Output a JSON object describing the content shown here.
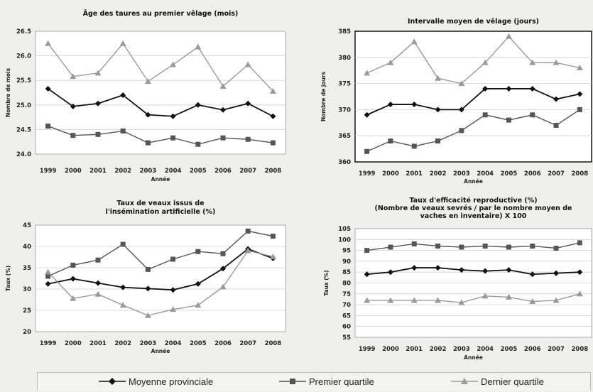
{
  "colors": {
    "moyenne": "#111111",
    "premier": "#555555",
    "dernier": "#9a9a9a"
  },
  "legend": {
    "items": [
      {
        "label": "Moyenne provinciale",
        "marker": "diamond",
        "color": "#111111"
      },
      {
        "label": "Premier quartile",
        "marker": "square",
        "color": "#555555"
      },
      {
        "label": "Dernier quartile",
        "marker": "triangle",
        "color": "#9a9a9a"
      }
    ]
  },
  "chart_data": [
    {
      "type": "line",
      "title": [
        "Âge des taures au premier vêlage (mois)"
      ],
      "xlabel": "Année",
      "ylabel": "Nombre de mois",
      "x": [
        "1999",
        "2000",
        "2001",
        "2002",
        "2003",
        "2004",
        "2005",
        "2006",
        "2007",
        "2008"
      ],
      "ylim": [
        24.0,
        26.5
      ],
      "yticks": [
        24.0,
        24.5,
        25.0,
        25.5,
        26.0,
        26.5
      ],
      "ytick_labels": [
        "24.0",
        "24.5",
        "25.0",
        "25.5",
        "26.0",
        "26.5"
      ],
      "grid": true,
      "series": [
        {
          "name": "Moyenne provinciale",
          "values": [
            25.33,
            24.97,
            25.03,
            25.2,
            24.8,
            24.77,
            25.0,
            24.9,
            25.03,
            24.77
          ]
        },
        {
          "name": "Premier quartile",
          "values": [
            24.57,
            24.38,
            24.4,
            24.47,
            24.23,
            24.33,
            24.2,
            24.33,
            24.3,
            24.23
          ]
        },
        {
          "name": "Dernier quartile",
          "values": [
            26.25,
            25.58,
            25.65,
            26.25,
            25.48,
            25.82,
            26.18,
            25.38,
            25.82,
            25.28
          ]
        }
      ]
    },
    {
      "type": "line",
      "title": [
        "Intervalle moyen de vêlage (jours)"
      ],
      "xlabel": "Année",
      "ylabel": "Nombre de jours",
      "x": [
        "1999",
        "2000",
        "2001",
        "2002",
        "2003",
        "2004",
        "2005",
        "2006",
        "2007",
        "2008"
      ],
      "ylim": [
        360,
        385
      ],
      "yticks": [
        360,
        365,
        370,
        375,
        380,
        385
      ],
      "ytick_labels": [
        "360",
        "365",
        "370",
        "375",
        "380",
        "385"
      ],
      "grid": true,
      "boxed": true,
      "series": [
        {
          "name": "Moyenne provinciale",
          "values": [
            369,
            371,
            371,
            370,
            370,
            374,
            374,
            374,
            372,
            373
          ]
        },
        {
          "name": "Premier quartile",
          "values": [
            362,
            364,
            363,
            364,
            366,
            369,
            368,
            369,
            367,
            370
          ]
        },
        {
          "name": "Dernier quartile",
          "values": [
            377,
            379,
            383,
            376,
            375,
            379,
            384,
            379,
            379,
            378
          ]
        }
      ]
    },
    {
      "type": "line",
      "title": [
        "Taux de veaux issus de",
        "l'insémination artificielle (%)"
      ],
      "xlabel": "Année",
      "ylabel": "Taux (%)",
      "x": [
        "1999",
        "2000",
        "2001",
        "2002",
        "2003",
        "2004",
        "2005",
        "2006",
        "2007",
        "2008"
      ],
      "ylim": [
        20,
        45
      ],
      "yticks": [
        20,
        25,
        30,
        35,
        40,
        45
      ],
      "ytick_labels": [
        "20",
        "25",
        "30",
        "35",
        "40",
        "45"
      ],
      "grid": true,
      "series": [
        {
          "name": "Moyenne provinciale",
          "values": [
            31.2,
            32.4,
            31.4,
            30.4,
            30.1,
            29.8,
            31.2,
            34.8,
            39.4,
            37.2
          ]
        },
        {
          "name": "Premier quartile",
          "values": [
            33.0,
            35.6,
            36.8,
            40.5,
            34.6,
            37.0,
            38.8,
            38.3,
            43.6,
            42.4
          ]
        },
        {
          "name": "Dernier quartile",
          "values": [
            34.0,
            27.8,
            28.8,
            26.2,
            23.8,
            25.2,
            26.2,
            30.5,
            39.0,
            37.6
          ]
        }
      ]
    },
    {
      "type": "line",
      "title": [
        "Taux d'efficacité reproductive (%)",
        "(Nombre de veaux sevrés / par le nombre moyen de",
        "vaches en inventaire) X 100"
      ],
      "xlabel": "Année",
      "ylabel": "Taux (%)",
      "x": [
        "1999",
        "2000",
        "2001",
        "2002",
        "2003",
        "2004",
        "2005",
        "2006",
        "2007",
        "2008"
      ],
      "ylim": [
        55,
        105
      ],
      "yticks": [
        55,
        60,
        65,
        70,
        75,
        80,
        85,
        90,
        95,
        100,
        105
      ],
      "ytick_labels": [
        "55",
        "60",
        "65",
        "70",
        "75",
        "80",
        "85",
        "90",
        "95",
        "100",
        "105"
      ],
      "grid": true,
      "series": [
        {
          "name": "Moyenne provinciale",
          "values": [
            84,
            85,
            87,
            87,
            86,
            85.5,
            86,
            84,
            84.5,
            85
          ]
        },
        {
          "name": "Premier quartile",
          "values": [
            95,
            96.5,
            98,
            97,
            96.5,
            97,
            96.5,
            97,
            96,
            98.5
          ]
        },
        {
          "name": "Dernier quartile",
          "values": [
            72,
            72,
            72,
            72,
            71,
            74,
            73.5,
            71.5,
            72,
            75
          ]
        }
      ]
    }
  ]
}
